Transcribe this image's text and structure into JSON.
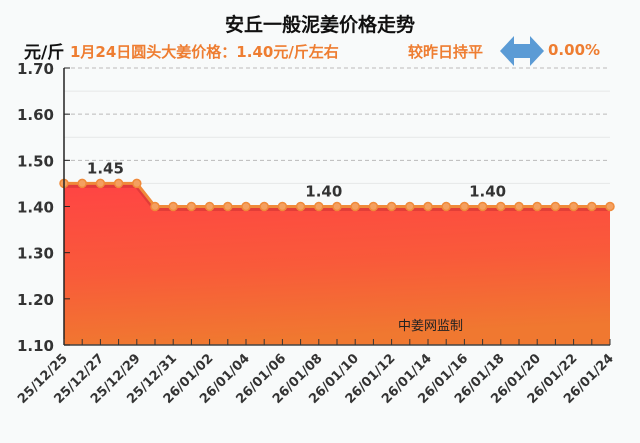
{
  "header": {
    "title": "安丘一般泥姜价格走势",
    "unit": "元/斤",
    "price_text": "1月24日圆头大姜价格：1.40元/斤左右",
    "change_text": "较昨日持平",
    "change_icon": "left-right-arrow-icon",
    "change_pct": "0.00%"
  },
  "watermark": "中姜网监制",
  "colors": {
    "accent": "#ee7d31",
    "arrow": "#5b9bd5",
    "fill_top": "#ff4444",
    "fill_bottom": "#f07830",
    "line": "#f08a3a"
  },
  "chart_data": {
    "type": "area",
    "title": "安丘一般泥姜价格走势",
    "ylabel": "元/斤",
    "xlabel": "",
    "ylim": [
      1.1,
      1.7
    ],
    "yticks": [
      "1.70",
      "1.60",
      "1.50",
      "1.40",
      "1.30",
      "1.20",
      "1.10"
    ],
    "grid": true,
    "legend": "none",
    "x": [
      "25/12/25",
      "25/12/26",
      "25/12/27",
      "25/12/28",
      "25/12/29",
      "25/12/30",
      "25/12/31",
      "26/01/01",
      "26/01/02",
      "26/01/03",
      "26/01/04",
      "26/01/05",
      "26/01/06",
      "26/01/07",
      "26/01/08",
      "26/01/09",
      "26/01/10",
      "26/01/11",
      "26/01/12",
      "26/01/13",
      "26/01/14",
      "26/01/15",
      "26/01/16",
      "26/01/17",
      "26/01/18",
      "26/01/19",
      "26/01/20",
      "26/01/21",
      "26/01/22",
      "26/01/23",
      "26/01/24"
    ],
    "xtick_labels": [
      "25/12/25",
      "25/12/27",
      "25/12/29",
      "25/12/31",
      "26/01/02",
      "26/01/04",
      "26/01/06",
      "26/01/08",
      "26/01/10",
      "26/01/12",
      "26/01/14",
      "26/01/16",
      "26/01/18",
      "26/01/20",
      "26/01/22",
      "26/01/24"
    ],
    "series": [
      {
        "name": "安丘一般泥姜",
        "values": [
          1.45,
          1.45,
          1.45,
          1.45,
          1.45,
          1.4,
          1.4,
          1.4,
          1.4,
          1.4,
          1.4,
          1.4,
          1.4,
          1.4,
          1.4,
          1.4,
          1.4,
          1.4,
          1.4,
          1.4,
          1.4,
          1.4,
          1.4,
          1.4,
          1.4,
          1.4,
          1.4,
          1.4,
          1.4,
          1.4,
          1.4
        ]
      }
    ],
    "annotations": [
      {
        "text": "1.45",
        "index": 2
      },
      {
        "text": "1.40",
        "index": 14
      },
      {
        "text": "1.40",
        "index": 23
      }
    ],
    "watermark": "中姜网监制"
  }
}
